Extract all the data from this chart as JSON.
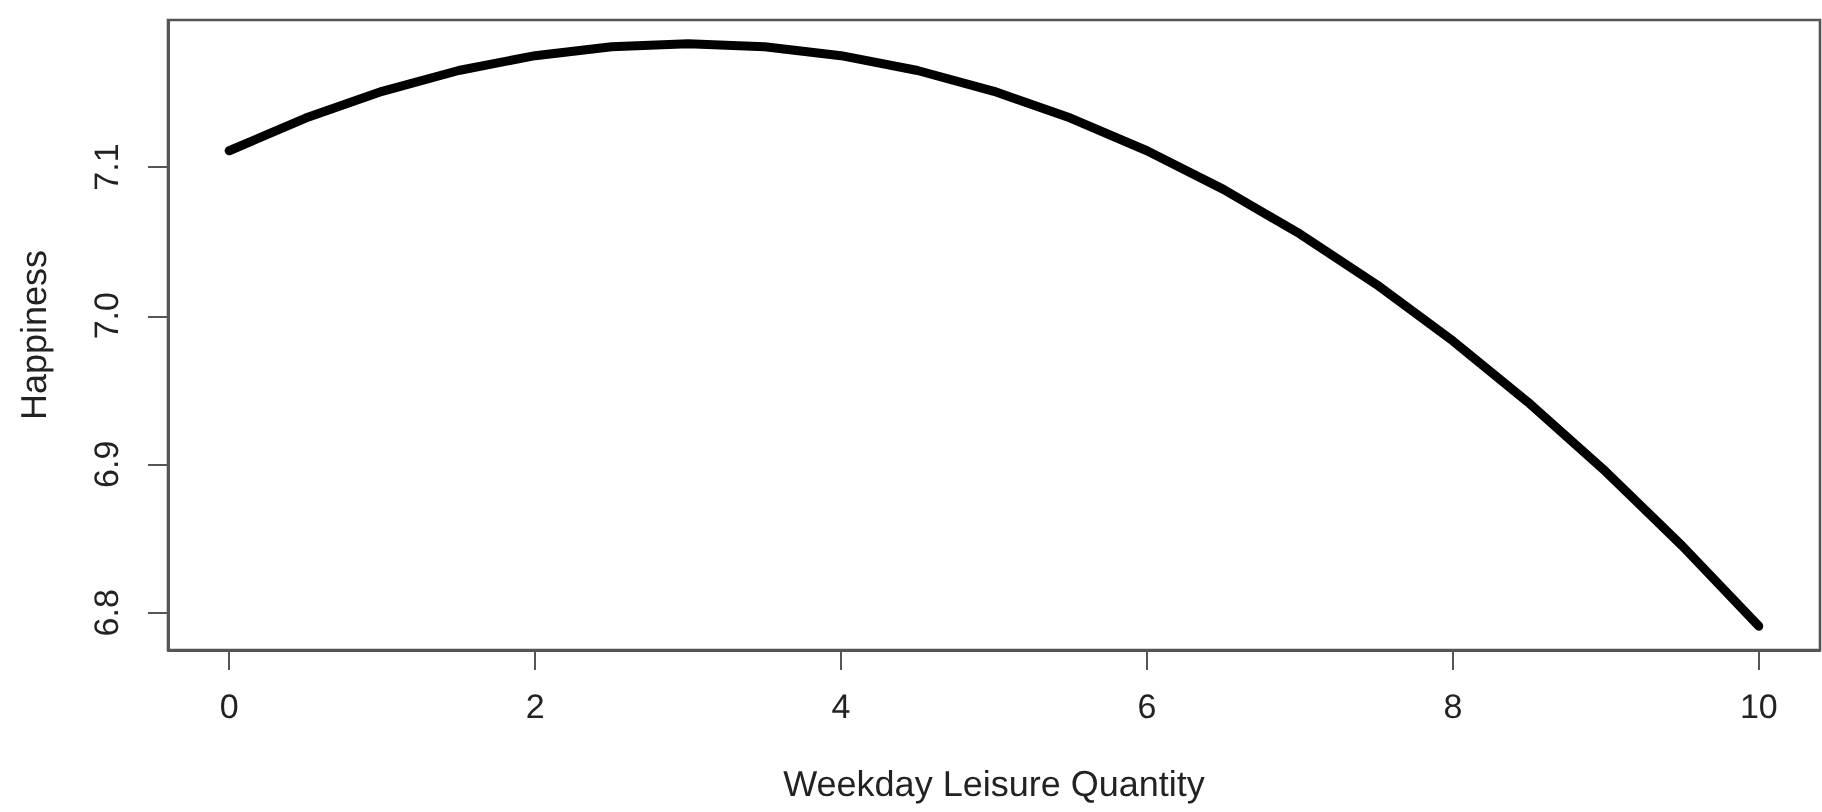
{
  "chart_data": {
    "type": "line",
    "xlabel": "Weekday Leisure Quantity",
    "ylabel": "Happiness",
    "x": [
      0,
      0.5,
      1,
      1.5,
      2,
      2.5,
      3,
      3.5,
      4,
      4.5,
      5,
      5.5,
      6,
      6.5,
      7,
      7.5,
      8,
      8.5,
      9,
      9.5,
      10
    ],
    "series": [
      {
        "color": "#000000",
        "values": [
          7.111,
          7.133,
          7.151,
          7.165,
          7.175,
          7.181,
          7.183,
          7.181,
          7.175,
          7.165,
          7.151,
          7.133,
          7.111,
          7.085,
          7.055,
          7.021,
          6.983,
          6.941,
          6.895,
          6.845,
          6.791
        ]
      }
    ],
    "xlim": [
      -0.4,
      10.4
    ],
    "xticks": [
      0,
      2,
      4,
      6,
      8,
      10
    ],
    "ylim": [
      6.775,
      7.199
    ],
    "yticks": [
      6.8,
      6.9,
      {
        "value": 7,
        "label": "7.0"
      },
      7.1
    ],
    "grid": false,
    "marker": "none",
    "line_style": "solid"
  }
}
